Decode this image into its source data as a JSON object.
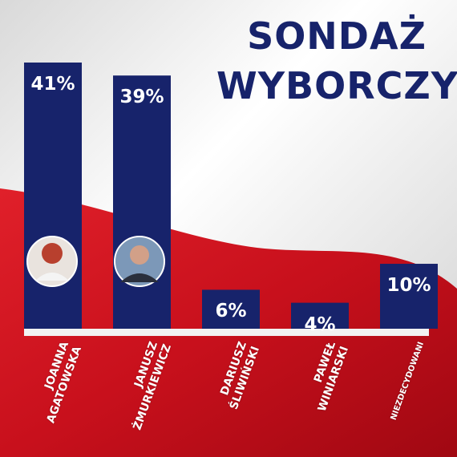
{
  "chart_data": {
    "type": "bar",
    "title": "SONDAŻ WYBORCZY",
    "categories": [
      "JOANNA AGATOWSKA",
      "JANUSZ ŻMURKIEWICZ",
      "DARIUSZ ŚLIWIŃSKI",
      "PAWEŁ WINIARSKI",
      "NIEZDECYDOWANI"
    ],
    "values": [
      41,
      39,
      6,
      4,
      10
    ],
    "value_labels": [
      "41%",
      "39%",
      "6%",
      "4%",
      "10%"
    ],
    "color": "#17236b"
  }
}
